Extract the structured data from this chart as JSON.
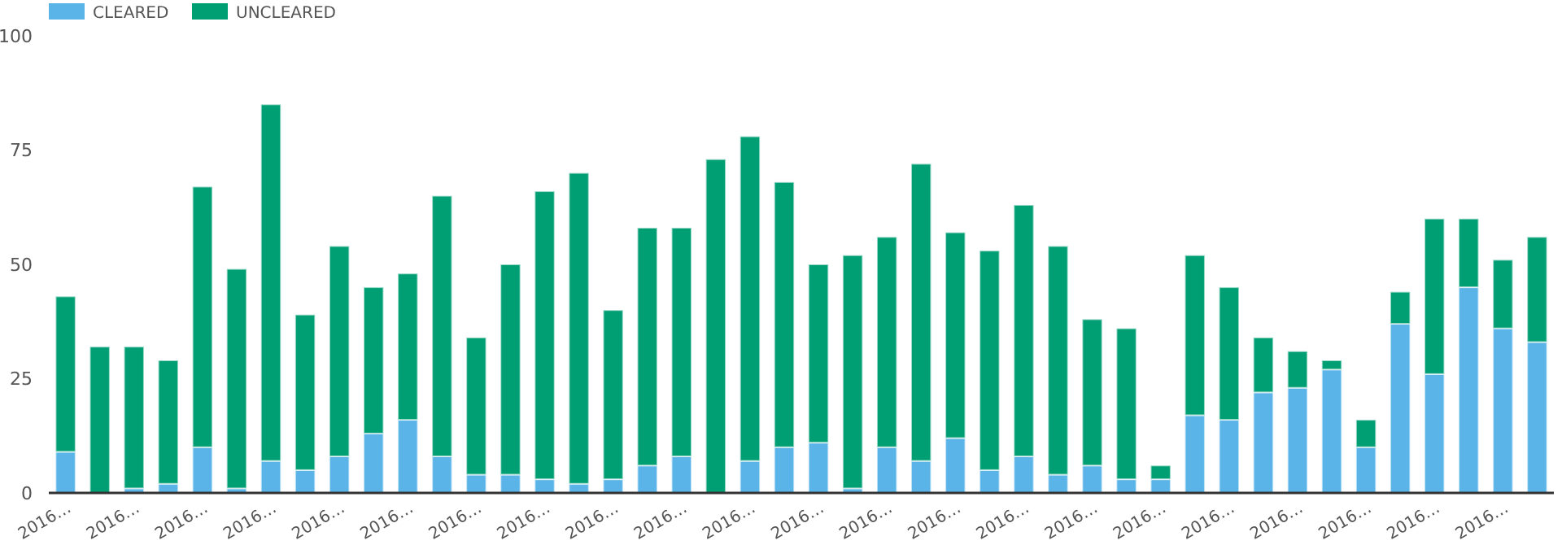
{
  "chart_data": {
    "type": "bar",
    "stacked": true,
    "categories": [
      "2016…",
      null,
      "2016…",
      null,
      "2016…",
      null,
      "2016…",
      null,
      "2016…",
      null,
      "2016…",
      null,
      "2016…",
      null,
      "2016…",
      null,
      "2016…",
      null,
      "2016…",
      null,
      "2016…",
      null,
      "2016…",
      null,
      "2016…",
      null,
      "2016…",
      null,
      "2016…",
      null,
      "2016…",
      null,
      "2016…",
      null,
      "2016…",
      null,
      "2016…",
      null,
      "2016…",
      null,
      "2016…",
      null,
      "2016…",
      null
    ],
    "series": [
      {
        "name": "CLEARED",
        "color": "#5ab4e8",
        "values": [
          9,
          0,
          1,
          2,
          10,
          1,
          7,
          5,
          8,
          13,
          16,
          8,
          4,
          4,
          3,
          2,
          3,
          6,
          8,
          0,
          7,
          10,
          11,
          1,
          10,
          7,
          12,
          5,
          8,
          4,
          6,
          3,
          3,
          17,
          16,
          22,
          23,
          27,
          10,
          37,
          26,
          45,
          36,
          33
        ]
      },
      {
        "name": "UNCLEARED",
        "color": "#009e73",
        "values": [
          34,
          32,
          31,
          27,
          57,
          48,
          78,
          34,
          46,
          32,
          32,
          57,
          30,
          46,
          63,
          68,
          37,
          52,
          50,
          73,
          71,
          58,
          39,
          51,
          46,
          65,
          45,
          48,
          55,
          50,
          32,
          33,
          3,
          35,
          29,
          12,
          8,
          2,
          6,
          7,
          34,
          15,
          15,
          23
        ]
      }
    ],
    "ylim": [
      0,
      100
    ],
    "yticks": [
      0,
      25,
      50,
      75,
      100
    ],
    "grid": false,
    "legend": "top left"
  }
}
